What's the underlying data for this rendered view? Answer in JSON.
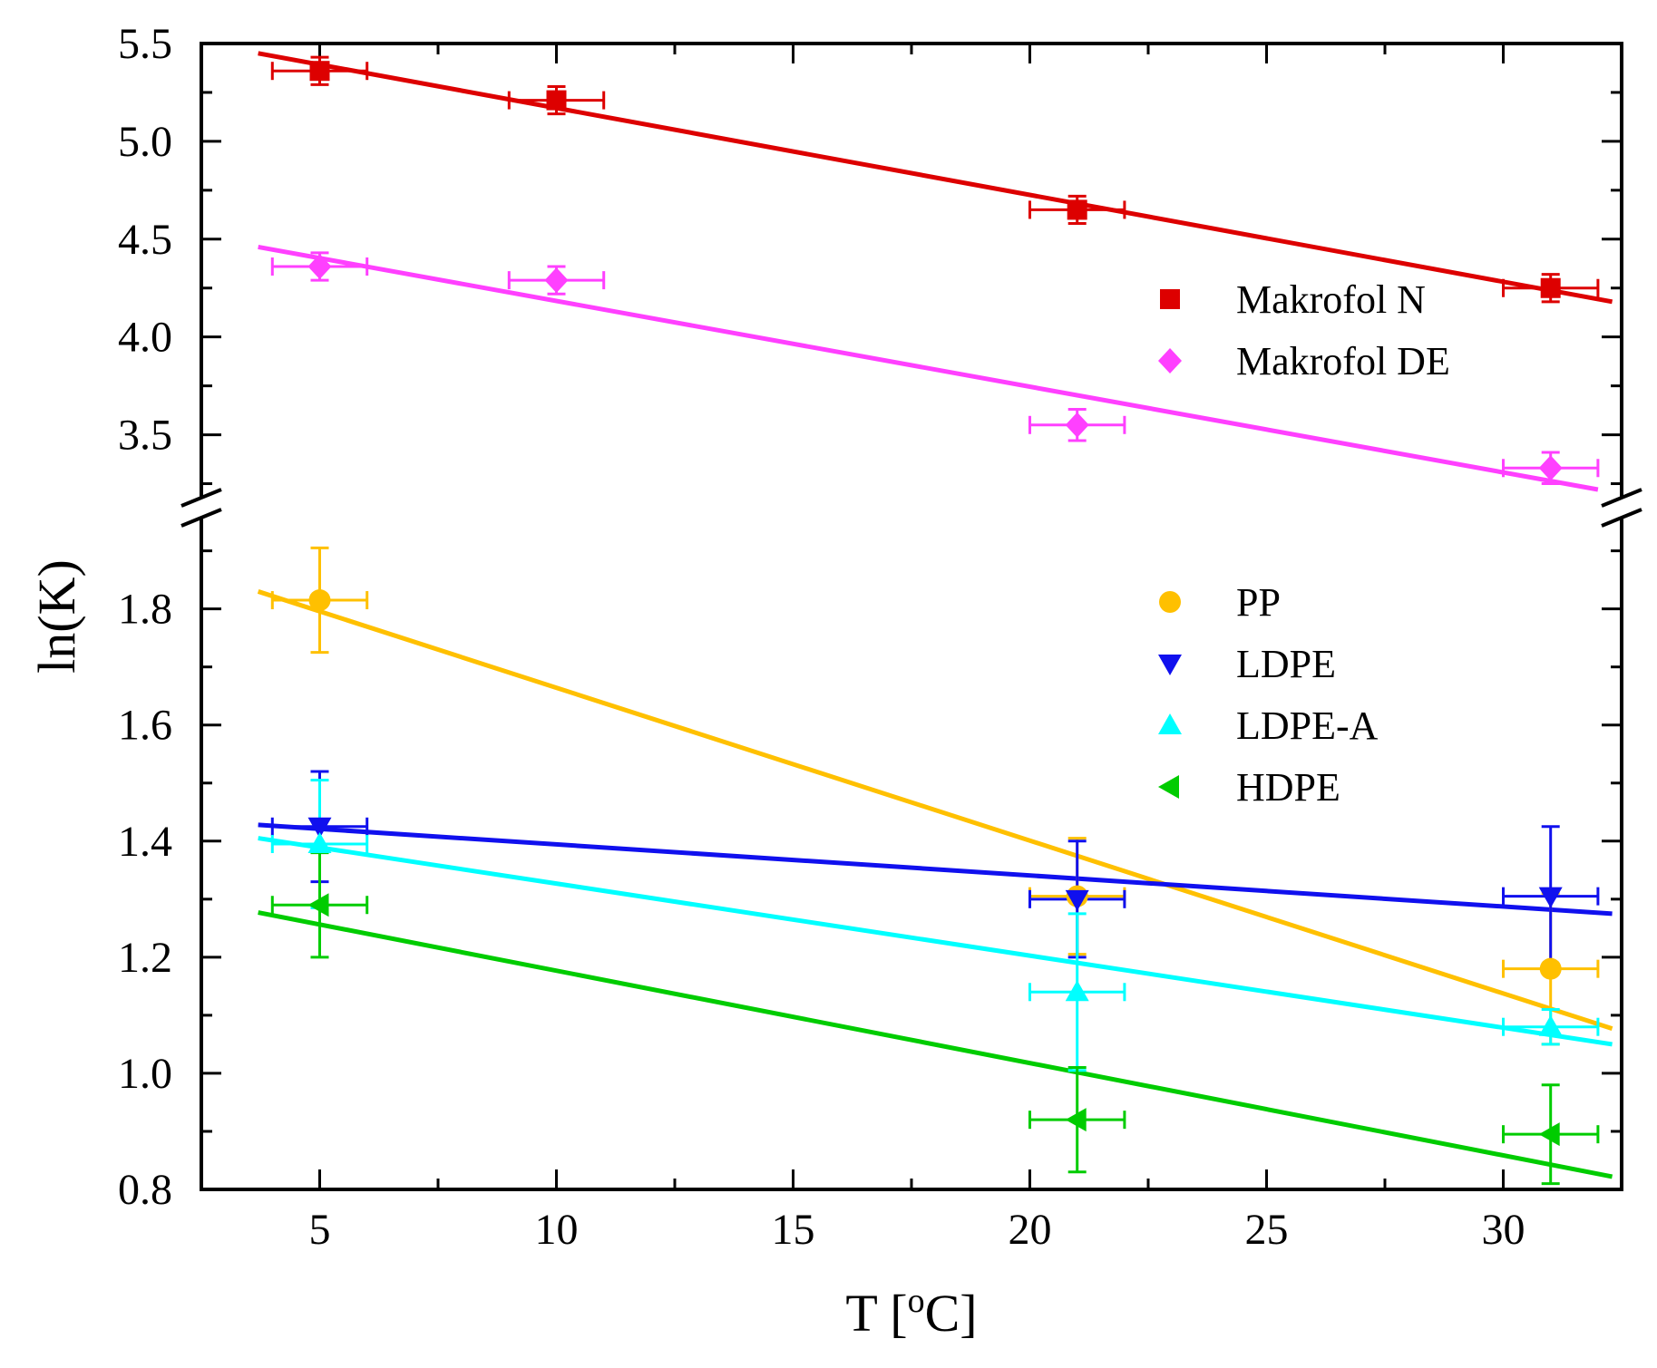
{
  "chart_data": {
    "type": "scatter",
    "xlabel": "T [",
    "xlabel_sup": "o",
    "xlabel_tail": "C]",
    "ylabel": "ln(K)",
    "xlim": [
      2.5,
      32.5
    ],
    "x_ticks": [
      "5",
      "10",
      "15",
      "20",
      "25",
      "30"
    ],
    "y_ticks_upper": [
      "3.5",
      "4.0",
      "4.5",
      "5.0",
      "5.5"
    ],
    "y_ticks_lower": [
      "0.8",
      "1.0",
      "1.2",
      "1.4",
      "1.6",
      "1.8"
    ],
    "panels": {
      "upper": {
        "ylim": [
          3.22,
          5.5
        ]
      },
      "lower": {
        "ylim": [
          0.8,
          1.94
        ]
      }
    },
    "series": [
      {
        "name": "Makrofol N",
        "panel": "upper",
        "color": "#dd0000",
        "marker": "square",
        "points": [
          {
            "x": 5,
            "y": 5.36,
            "xerr": 1,
            "yerr": 0.07
          },
          {
            "x": 10,
            "y": 5.21,
            "xerr": 1,
            "yerr": 0.07
          },
          {
            "x": 21,
            "y": 4.65,
            "xerr": 1,
            "yerr": 0.07
          },
          {
            "x": 31,
            "y": 4.25,
            "xerr": 1,
            "yerr": 0.07
          }
        ],
        "fit": {
          "x": [
            3.7,
            32.3
          ],
          "y": [
            5.45,
            4.18
          ]
        }
      },
      {
        "name": "Makrofol DE",
        "panel": "upper",
        "color": "#ff40ff",
        "marker": "diamond",
        "points": [
          {
            "x": 5,
            "y": 4.36,
            "xerr": 1,
            "yerr": 0.07
          },
          {
            "x": 10,
            "y": 4.29,
            "xerr": 1,
            "yerr": 0.07
          },
          {
            "x": 21,
            "y": 3.55,
            "xerr": 1,
            "yerr": 0.08
          },
          {
            "x": 31,
            "y": 3.33,
            "xerr": 1,
            "yerr": 0.08
          }
        ],
        "fit": {
          "x": [
            3.7,
            32.0
          ],
          "y": [
            4.46,
            3.22
          ]
        }
      },
      {
        "name": "PP",
        "panel": "lower",
        "color": "#ffc000",
        "marker": "circle",
        "points": [
          {
            "x": 5,
            "y": 1.815,
            "xerr": 1,
            "yerr": 0.09
          },
          {
            "x": 21,
            "y": 1.305,
            "xerr": 1,
            "yerr": 0.1
          },
          {
            "x": 31,
            "y": 1.18,
            "xerr": 1,
            "yerr": 0.13
          }
        ],
        "fit": {
          "x": [
            3.7,
            32.3
          ],
          "y": [
            1.83,
            1.077
          ]
        }
      },
      {
        "name": "LDPE",
        "panel": "lower",
        "color": "#1010ee",
        "marker": "triangle-down",
        "points": [
          {
            "x": 5,
            "y": 1.425,
            "xerr": 1,
            "yerr": 0.095
          },
          {
            "x": 21,
            "y": 1.3,
            "xerr": 1,
            "yerr": 0.1
          },
          {
            "x": 31,
            "y": 1.305,
            "xerr": 1,
            "yerr": 0.12
          }
        ],
        "fit": {
          "x": [
            3.7,
            32.3
          ],
          "y": [
            1.428,
            1.275
          ]
        }
      },
      {
        "name": "LDPE-A",
        "panel": "lower",
        "color": "#00ffff",
        "marker": "triangle-up",
        "points": [
          {
            "x": 5,
            "y": 1.395,
            "xerr": 1,
            "yerr": 0.11
          },
          {
            "x": 21,
            "y": 1.14,
            "xerr": 1,
            "yerr": 0.135
          },
          {
            "x": 31,
            "y": 1.08,
            "xerr": 1,
            "yerr": 0.03
          }
        ],
        "fit": {
          "x": [
            3.7,
            32.3
          ],
          "y": [
            1.405,
            1.05
          ]
        }
      },
      {
        "name": "HDPE",
        "panel": "lower",
        "color": "#00cc00",
        "marker": "triangle-left",
        "points": [
          {
            "x": 5,
            "y": 1.29,
            "xerr": 1,
            "yerr": 0.09
          },
          {
            "x": 21,
            "y": 0.92,
            "xerr": 1,
            "yerr": 0.09
          },
          {
            "x": 31,
            "y": 0.895,
            "xerr": 1,
            "yerr": 0.085
          }
        ],
        "fit": {
          "x": [
            3.7,
            32.3
          ],
          "y": [
            1.277,
            0.822
          ]
        }
      }
    ],
    "legends": [
      {
        "placement": "upper-right",
        "entries": [
          "Makrofol N",
          "Makrofol DE"
        ]
      },
      {
        "placement": "lower-right",
        "entries": [
          "PP",
          "LDPE",
          "LDPE-A",
          "HDPE"
        ]
      }
    ]
  }
}
